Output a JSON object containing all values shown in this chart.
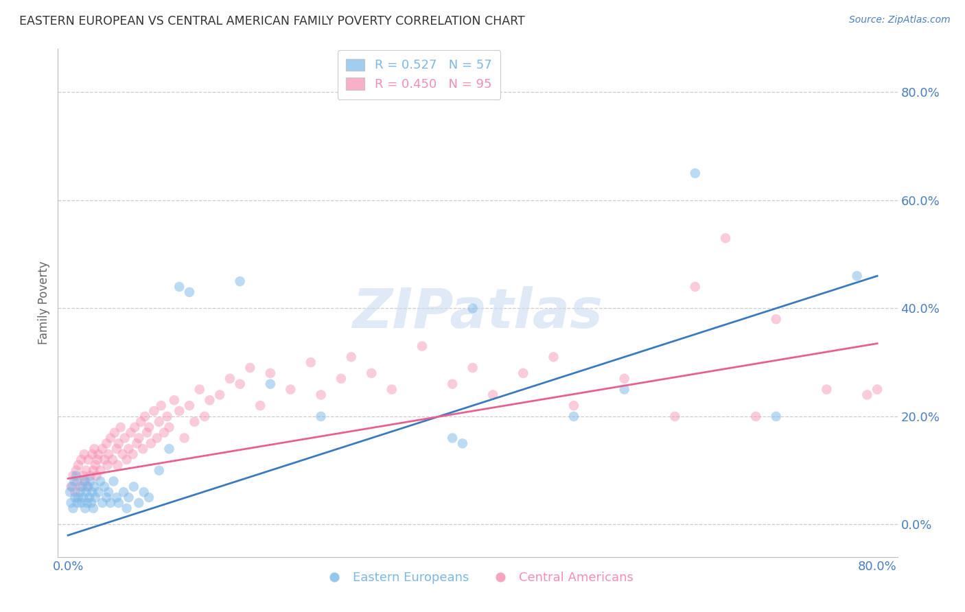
{
  "title": "EASTERN EUROPEAN VS CENTRAL AMERICAN FAMILY POVERTY CORRELATION CHART",
  "source": "Source: ZipAtlas.com",
  "ylabel": "Family Poverty",
  "ytick_values": [
    0.0,
    0.2,
    0.4,
    0.6,
    0.8
  ],
  "ytick_labels": [
    "0.0%",
    "20.0%",
    "40.0%",
    "60.0%",
    "80.0%"
  ],
  "xtick_values": [
    0.0,
    0.8
  ],
  "xtick_labels": [
    "0.0%",
    "80.0%"
  ],
  "xlim": [
    -0.01,
    0.82
  ],
  "ylim": [
    -0.06,
    0.88
  ],
  "blue_color": "#7bb8e8",
  "pink_color": "#f48fb1",
  "blue_line_color": "#3a7bbf",
  "pink_line_color": "#e86090",
  "watermark": "ZIPatlas",
  "blue_line_x0": 0.0,
  "blue_line_y0": -0.02,
  "blue_line_x1": 0.8,
  "blue_line_y1": 0.46,
  "pink_line_x0": 0.0,
  "pink_line_y0": 0.085,
  "pink_line_x1": 0.8,
  "pink_line_y1": 0.335,
  "blue_scatter_x": [
    0.002,
    0.003,
    0.004,
    0.005,
    0.006,
    0.007,
    0.008,
    0.009,
    0.01,
    0.012,
    0.013,
    0.014,
    0.015,
    0.016,
    0.017,
    0.018,
    0.019,
    0.02,
    0.021,
    0.022,
    0.023,
    0.024,
    0.025,
    0.026,
    0.027,
    0.03,
    0.032,
    0.034,
    0.036,
    0.038,
    0.04,
    0.042,
    0.045,
    0.048,
    0.05,
    0.055,
    0.058,
    0.06,
    0.065,
    0.07,
    0.075,
    0.08,
    0.09,
    0.1,
    0.11,
    0.12,
    0.17,
    0.2,
    0.25,
    0.38,
    0.39,
    0.4,
    0.5,
    0.55,
    0.62,
    0.7,
    0.78
  ],
  "blue_scatter_y": [
    0.06,
    0.04,
    0.07,
    0.03,
    0.08,
    0.05,
    0.09,
    0.04,
    0.05,
    0.06,
    0.04,
    0.07,
    0.05,
    0.08,
    0.03,
    0.06,
    0.04,
    0.07,
    0.05,
    0.08,
    0.04,
    0.06,
    0.03,
    0.07,
    0.05,
    0.06,
    0.08,
    0.04,
    0.07,
    0.05,
    0.06,
    0.04,
    0.08,
    0.05,
    0.04,
    0.06,
    0.03,
    0.05,
    0.07,
    0.04,
    0.06,
    0.05,
    0.1,
    0.14,
    0.44,
    0.43,
    0.45,
    0.26,
    0.2,
    0.16,
    0.15,
    0.4,
    0.2,
    0.25,
    0.65,
    0.2,
    0.46
  ],
  "pink_scatter_x": [
    0.003,
    0.005,
    0.007,
    0.008,
    0.009,
    0.01,
    0.012,
    0.013,
    0.015,
    0.016,
    0.017,
    0.018,
    0.019,
    0.02,
    0.022,
    0.024,
    0.025,
    0.026,
    0.027,
    0.028,
    0.029,
    0.03,
    0.032,
    0.034,
    0.036,
    0.038,
    0.039,
    0.04,
    0.042,
    0.044,
    0.046,
    0.048,
    0.049,
    0.05,
    0.052,
    0.054,
    0.056,
    0.058,
    0.06,
    0.062,
    0.064,
    0.066,
    0.068,
    0.07,
    0.072,
    0.074,
    0.076,
    0.078,
    0.08,
    0.082,
    0.085,
    0.088,
    0.09,
    0.092,
    0.095,
    0.098,
    0.1,
    0.105,
    0.11,
    0.115,
    0.12,
    0.125,
    0.13,
    0.135,
    0.14,
    0.15,
    0.16,
    0.17,
    0.18,
    0.19,
    0.2,
    0.22,
    0.24,
    0.25,
    0.27,
    0.28,
    0.3,
    0.32,
    0.35,
    0.38,
    0.4,
    0.42,
    0.45,
    0.48,
    0.5,
    0.55,
    0.6,
    0.62,
    0.65,
    0.68,
    0.7,
    0.75,
    0.79,
    0.8
  ],
  "pink_scatter_y": [
    0.07,
    0.09,
    0.06,
    0.1,
    0.08,
    0.11,
    0.07,
    0.12,
    0.09,
    0.13,
    0.08,
    0.1,
    0.07,
    0.12,
    0.09,
    0.13,
    0.1,
    0.14,
    0.11,
    0.09,
    0.12,
    0.13,
    0.1,
    0.14,
    0.12,
    0.15,
    0.11,
    0.13,
    0.16,
    0.12,
    0.17,
    0.14,
    0.11,
    0.15,
    0.18,
    0.13,
    0.16,
    0.12,
    0.14,
    0.17,
    0.13,
    0.18,
    0.15,
    0.16,
    0.19,
    0.14,
    0.2,
    0.17,
    0.18,
    0.15,
    0.21,
    0.16,
    0.19,
    0.22,
    0.17,
    0.2,
    0.18,
    0.23,
    0.21,
    0.16,
    0.22,
    0.19,
    0.25,
    0.2,
    0.23,
    0.24,
    0.27,
    0.26,
    0.29,
    0.22,
    0.28,
    0.25,
    0.3,
    0.24,
    0.27,
    0.31,
    0.28,
    0.25,
    0.33,
    0.26,
    0.29,
    0.24,
    0.28,
    0.31,
    0.22,
    0.27,
    0.2,
    0.44,
    0.53,
    0.2,
    0.38,
    0.25,
    0.24,
    0.25
  ],
  "background_color": "#ffffff",
  "grid_color": "#cccccc",
  "title_color": "#333333",
  "tick_color": "#4a7fc1",
  "source_color": "#4a7fc1"
}
